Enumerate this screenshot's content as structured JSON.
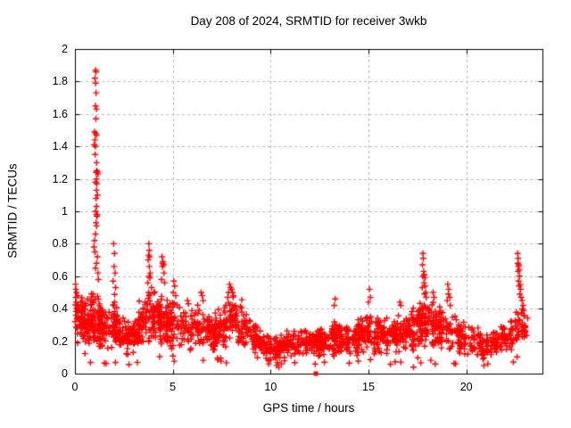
{
  "chart_data": {
    "type": "scatter",
    "title": "Day 208 of 2024, SRMTID for receiver 3wkb",
    "xlabel": "GPS time / hours",
    "ylabel": "SRMTID / TECUs",
    "xlim": [
      0,
      23.89
    ],
    "ylim": [
      0,
      2
    ],
    "xticks": [
      0,
      5,
      10,
      15,
      20
    ],
    "xtick_labels": [
      "0",
      "5",
      "10",
      "15",
      "20"
    ],
    "yticks": [
      0,
      0.2,
      0.4,
      0.6,
      0.8,
      1,
      1.2,
      1.4,
      1.6,
      1.8,
      2
    ],
    "ytick_labels": [
      "0",
      "0.2",
      "0.4",
      "0.6",
      "0.8",
      "1",
      "1.2",
      "1.4",
      "1.6",
      "1.8",
      "2"
    ],
    "grid": true,
    "legend": "none",
    "marker": "plus",
    "marker_color": "#ff0000",
    "grid_color": "#bbbbbb",
    "border_color": "#000000",
    "data_x_end": 23.15,
    "n_band_points": 1900,
    "seed": 1337,
    "column_streak_prob": 0.3,
    "density_weights": [
      [
        0,
        1.5
      ],
      [
        1,
        1.3
      ],
      [
        2,
        1.2
      ],
      [
        9,
        1.0
      ],
      [
        12,
        1.1
      ],
      [
        17,
        1.0
      ],
      [
        20,
        0.9
      ],
      [
        22,
        1.05
      ]
    ],
    "band_envelope": [
      [
        0.0,
        0.18,
        0.56
      ],
      [
        0.3,
        0.16,
        0.5
      ],
      [
        0.7,
        0.15,
        0.46
      ],
      [
        1.0,
        0.15,
        0.55
      ],
      [
        1.3,
        0.14,
        0.45
      ],
      [
        1.7,
        0.13,
        0.4
      ],
      [
        2.0,
        0.16,
        0.48
      ],
      [
        2.4,
        0.11,
        0.36
      ],
      [
        2.8,
        0.1,
        0.34
      ],
      [
        3.2,
        0.13,
        0.4
      ],
      [
        3.6,
        0.16,
        0.52
      ],
      [
        3.9,
        0.18,
        0.58
      ],
      [
        4.3,
        0.17,
        0.55
      ],
      [
        4.7,
        0.15,
        0.5
      ],
      [
        5.1,
        0.14,
        0.48
      ],
      [
        5.5,
        0.13,
        0.42
      ],
      [
        6.0,
        0.14,
        0.42
      ],
      [
        6.5,
        0.15,
        0.47
      ],
      [
        7.0,
        0.12,
        0.38
      ],
      [
        7.5,
        0.14,
        0.43
      ],
      [
        8.0,
        0.18,
        0.5
      ],
      [
        8.5,
        0.15,
        0.44
      ],
      [
        9.0,
        0.11,
        0.36
      ],
      [
        9.5,
        0.09,
        0.28
      ],
      [
        10.0,
        0.06,
        0.24
      ],
      [
        10.5,
        0.06,
        0.25
      ],
      [
        11.0,
        0.08,
        0.29
      ],
      [
        11.5,
        0.09,
        0.3
      ],
      [
        12.0,
        0.09,
        0.28
      ],
      [
        12.5,
        0.1,
        0.3
      ],
      [
        13.0,
        0.1,
        0.32
      ],
      [
        13.5,
        0.11,
        0.34
      ],
      [
        14.0,
        0.1,
        0.32
      ],
      [
        14.5,
        0.1,
        0.34
      ],
      [
        15.0,
        0.11,
        0.38
      ],
      [
        15.5,
        0.1,
        0.36
      ],
      [
        16.0,
        0.1,
        0.35
      ],
      [
        16.5,
        0.11,
        0.38
      ],
      [
        17.0,
        0.1,
        0.4
      ],
      [
        17.5,
        0.14,
        0.46
      ],
      [
        18.0,
        0.16,
        0.46
      ],
      [
        18.5,
        0.14,
        0.42
      ],
      [
        19.0,
        0.13,
        0.42
      ],
      [
        19.5,
        0.11,
        0.36
      ],
      [
        20.0,
        0.1,
        0.32
      ],
      [
        20.5,
        0.08,
        0.28
      ],
      [
        21.0,
        0.08,
        0.26
      ],
      [
        21.5,
        0.09,
        0.28
      ],
      [
        22.0,
        0.1,
        0.33
      ],
      [
        22.4,
        0.13,
        0.38
      ],
      [
        22.7,
        0.17,
        0.45
      ],
      [
        23.0,
        0.2,
        0.42
      ],
      [
        23.15,
        0.22,
        0.4
      ]
    ],
    "main_spike_points": [
      [
        1.05,
        1.87
      ],
      [
        1.08,
        1.86
      ],
      [
        1.02,
        1.82
      ],
      [
        1.05,
        1.79
      ],
      [
        1.08,
        1.73
      ],
      [
        1.05,
        1.65
      ],
      [
        1.1,
        1.63
      ],
      [
        1.07,
        1.57
      ],
      [
        1.0,
        1.49
      ],
      [
        1.05,
        1.48
      ],
      [
        1.1,
        1.47
      ],
      [
        1.02,
        1.44
      ],
      [
        0.98,
        1.41
      ],
      [
        1.05,
        1.4
      ],
      [
        1.03,
        1.35
      ],
      [
        1.1,
        1.3
      ],
      [
        1.12,
        1.25
      ],
      [
        1.08,
        1.24
      ],
      [
        1.15,
        1.24
      ],
      [
        1.18,
        1.23
      ],
      [
        1.1,
        1.2
      ],
      [
        1.05,
        1.18
      ],
      [
        1.12,
        1.17
      ],
      [
        1.1,
        1.13
      ],
      [
        1.15,
        1.1
      ],
      [
        1.08,
        1.08
      ],
      [
        1.1,
        1.03
      ],
      [
        1.05,
        1.0
      ],
      [
        1.1,
        0.98
      ],
      [
        1.15,
        0.98
      ],
      [
        1.12,
        0.97
      ],
      [
        1.08,
        0.93
      ],
      [
        1.1,
        0.91
      ],
      [
        1.05,
        0.86
      ],
      [
        1.0,
        0.82
      ],
      [
        0.97,
        0.78
      ],
      [
        1.02,
        0.75
      ],
      [
        1.15,
        0.72
      ],
      [
        1.1,
        0.68
      ],
      [
        1.05,
        0.65
      ],
      [
        1.18,
        0.62
      ],
      [
        1.2,
        0.58
      ]
    ],
    "spike_points": [
      [
        0.03,
        0.55
      ],
      [
        0.05,
        0.52
      ],
      [
        0.08,
        0.5
      ],
      [
        0.04,
        0.47
      ],
      [
        0.06,
        0.44
      ],
      [
        0.1,
        0.42
      ],
      [
        1.98,
        0.8
      ],
      [
        2.02,
        0.74
      ],
      [
        2.0,
        0.66
      ],
      [
        2.05,
        0.62
      ],
      [
        1.95,
        0.57
      ],
      [
        2.08,
        0.53
      ],
      [
        3.78,
        0.8
      ],
      [
        3.8,
        0.76
      ],
      [
        3.76,
        0.73
      ],
      [
        3.82,
        0.72
      ],
      [
        3.74,
        0.7
      ],
      [
        3.8,
        0.66
      ],
      [
        3.85,
        0.62
      ],
      [
        3.79,
        0.6
      ],
      [
        3.83,
        0.59
      ],
      [
        3.72,
        0.56
      ],
      [
        4.45,
        0.72
      ],
      [
        4.5,
        0.69
      ],
      [
        4.48,
        0.68
      ],
      [
        4.53,
        0.67
      ],
      [
        4.47,
        0.66
      ],
      [
        4.55,
        0.62
      ],
      [
        4.42,
        0.58
      ],
      [
        4.58,
        0.56
      ],
      [
        5.05,
        0.57
      ],
      [
        5.1,
        0.54
      ],
      [
        5.02,
        0.5
      ],
      [
        5.15,
        0.48
      ],
      [
        5.75,
        0.45
      ],
      [
        5.8,
        0.43
      ],
      [
        6.45,
        0.5
      ],
      [
        6.5,
        0.48
      ],
      [
        6.55,
        0.45
      ],
      [
        7.9,
        0.55
      ],
      [
        7.95,
        0.53
      ],
      [
        8.0,
        0.52
      ],
      [
        7.85,
        0.5
      ],
      [
        8.05,
        0.5
      ],
      [
        8.1,
        0.48
      ],
      [
        7.8,
        0.47
      ],
      [
        13.3,
        0.46
      ],
      [
        13.25,
        0.42
      ],
      [
        15.05,
        0.52
      ],
      [
        15.1,
        0.47
      ],
      [
        15.0,
        0.44
      ],
      [
        16.6,
        0.44
      ],
      [
        16.65,
        0.42
      ],
      [
        17.78,
        0.74
      ],
      [
        17.8,
        0.71
      ],
      [
        17.76,
        0.67
      ],
      [
        17.82,
        0.63
      ],
      [
        17.85,
        0.61
      ],
      [
        17.79,
        0.6
      ],
      [
        17.88,
        0.59
      ],
      [
        17.83,
        0.56
      ],
      [
        17.9,
        0.54
      ],
      [
        17.75,
        0.53
      ],
      [
        17.92,
        0.5
      ],
      [
        17.86,
        0.49
      ],
      [
        17.95,
        0.47
      ],
      [
        18.3,
        0.5
      ],
      [
        18.35,
        0.47
      ],
      [
        19.05,
        0.55
      ],
      [
        19.1,
        0.52
      ],
      [
        19.08,
        0.49
      ],
      [
        19.15,
        0.47
      ],
      [
        19.02,
        0.45
      ],
      [
        19.18,
        0.42
      ],
      [
        22.62,
        0.74
      ],
      [
        22.65,
        0.71
      ],
      [
        22.63,
        0.68
      ],
      [
        22.68,
        0.67
      ],
      [
        22.66,
        0.66
      ],
      [
        22.7,
        0.64
      ],
      [
        22.64,
        0.63
      ],
      [
        22.72,
        0.6
      ],
      [
        22.67,
        0.57
      ],
      [
        22.75,
        0.55
      ],
      [
        22.7,
        0.54
      ],
      [
        22.78,
        0.52
      ],
      [
        22.73,
        0.49
      ],
      [
        22.8,
        0.47
      ],
      [
        22.85,
        0.45
      ],
      [
        22.9,
        0.42
      ]
    ],
    "low_outliers": [
      [
        9.9,
        0.06
      ],
      [
        10.3,
        0.05
      ],
      [
        10.55,
        0.06
      ],
      [
        12.75,
        0.07
      ],
      [
        17.3,
        0.04
      ],
      [
        19.45,
        0.06
      ],
      [
        20.9,
        0.05
      ],
      [
        21.1,
        0.06
      ]
    ],
    "zero_marker": {
      "x": 12.3,
      "y": 0,
      "marker": "filled-square"
    }
  }
}
